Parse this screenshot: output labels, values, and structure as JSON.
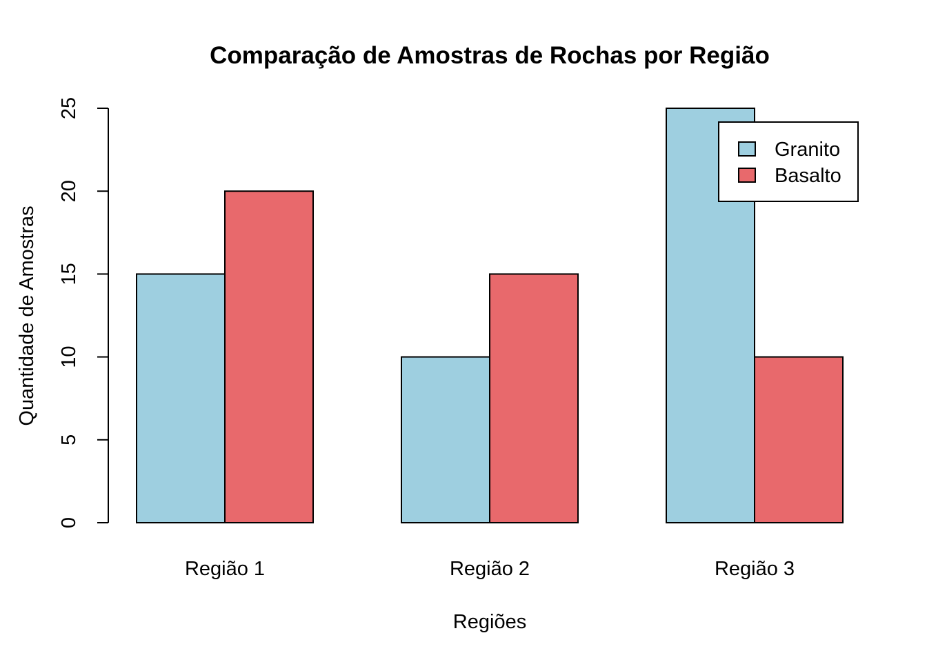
{
  "chart_data": {
    "type": "bar",
    "title": "Comparação de Amostras de Rochas por Região",
    "xlabel": "Regiões",
    "ylabel": "Quantidade de Amostras",
    "categories": [
      "Região 1",
      "Região 2",
      "Região 3"
    ],
    "series": [
      {
        "name": "Granito",
        "values": [
          15,
          10,
          25
        ],
        "color": "#9ecfe0"
      },
      {
        "name": "Basalto",
        "values": [
          20,
          15,
          10
        ],
        "color": "#e8696c"
      }
    ],
    "ylim": [
      0,
      25
    ],
    "yticks": [
      0,
      5,
      10,
      15,
      20,
      25
    ],
    "grid": false,
    "legend_position": "top-right"
  }
}
